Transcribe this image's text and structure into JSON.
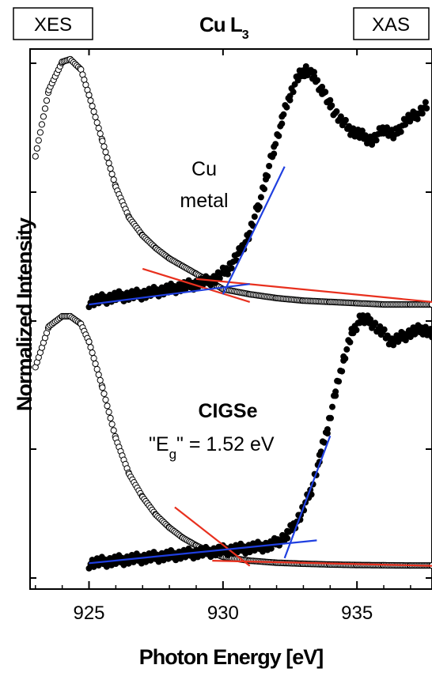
{
  "chart_data": {
    "type": "scatter",
    "title": "Cu L",
    "title_sub": "3",
    "xlabel": "Photon Energy [eV]",
    "ylabel": "Normalized Intensity",
    "xlim": [
      922.8,
      937.8
    ],
    "x_ticks": [
      925,
      930,
      935
    ],
    "x_tick_labels": [
      "925",
      "930",
      "935"
    ],
    "y_axis": "arbitrary units, no tick labels",
    "legend_boxes": {
      "left": "XES",
      "right": "XAS"
    },
    "panels": [
      {
        "annotation_lines": [
          "Cu",
          "metal"
        ],
        "series": [
          {
            "name": "XES",
            "marker": "open-circle",
            "x": [
              923.0,
              923.5,
              924.0,
              924.3,
              924.7,
              925.0,
              925.5,
              926.0,
              926.5,
              927.0,
              927.5,
              928.0,
              928.5,
              929.0,
              929.5,
              930.0,
              931.0,
              932.0,
              933.0,
              934.0,
              935.0,
              936.0,
              937.0,
              937.8
            ],
            "y": [
              0.62,
              0.88,
              0.99,
              1.0,
              0.96,
              0.86,
              0.68,
              0.5,
              0.38,
              0.31,
              0.26,
              0.22,
              0.19,
              0.16,
              0.13,
              0.1,
              0.08,
              0.065,
              0.055,
              0.05,
              0.045,
              0.04,
              0.04,
              0.04
            ]
          },
          {
            "name": "XAS",
            "marker": "filled-circle",
            "x": [
              925.0,
              926.0,
              927.0,
              928.0,
              929.0,
              929.7,
              930.2,
              930.6,
              931.0,
              931.3,
              931.6,
              931.9,
              932.2,
              932.5,
              932.8,
              933.1,
              933.4,
              933.7,
              934.0,
              934.4,
              934.8,
              935.2,
              935.6,
              936.0,
              936.4,
              936.8,
              937.2,
              937.6
            ],
            "y": [
              0.05,
              0.07,
              0.08,
              0.1,
              0.12,
              0.14,
              0.18,
              0.24,
              0.32,
              0.42,
              0.53,
              0.65,
              0.76,
              0.86,
              0.93,
              0.96,
              0.93,
              0.88,
              0.82,
              0.76,
              0.72,
              0.7,
              0.68,
              0.73,
              0.7,
              0.76,
              0.78,
              0.82
            ]
          }
        ],
        "fit_lines": [
          {
            "color": "#e8301e",
            "x": [
              927.0,
              931.0
            ],
            "y": [
              0.18,
              0.05
            ]
          },
          {
            "color": "#e8301e",
            "x": [
              929.0,
              937.8
            ],
            "y": [
              0.14,
              0.05
            ]
          },
          {
            "color": "#1f3fe0",
            "x": [
              925.0,
              931.0
            ],
            "y": [
              0.04,
              0.12
            ]
          },
          {
            "color": "#1f3fe0",
            "x": [
              930.0,
              932.3
            ],
            "y": [
              0.08,
              0.58
            ]
          }
        ]
      },
      {
        "annotation_title": "CIGSe",
        "annotation_eg_prefix": "\"E",
        "annotation_eg_sub": "g",
        "annotation_eg_suffix": "\" = 1.52 eV",
        "series": [
          {
            "name": "XES",
            "marker": "open-circle",
            "x": [
              923.0,
              923.5,
              924.0,
              924.3,
              924.7,
              925.0,
              925.5,
              926.0,
              926.5,
              927.0,
              927.5,
              928.0,
              928.5,
              929.0,
              929.5,
              930.0,
              931.0,
              932.0,
              933.0,
              934.0,
              935.0,
              936.0,
              937.0,
              937.8
            ],
            "y": [
              0.8,
              0.96,
              1.0,
              1.0,
              0.97,
              0.9,
              0.72,
              0.52,
              0.38,
              0.29,
              0.22,
              0.17,
              0.13,
              0.1,
              0.075,
              0.055,
              0.04,
              0.032,
              0.028,
              0.025,
              0.023,
              0.022,
              0.021,
              0.021
            ]
          },
          {
            "name": "XAS",
            "marker": "filled-circle",
            "x": [
              925.0,
              926.0,
              927.0,
              928.0,
              929.0,
              930.0,
              931.0,
              931.8,
              932.4,
              932.9,
              933.3,
              933.6,
              933.9,
              934.2,
              934.5,
              934.8,
              935.1,
              935.5,
              935.9,
              936.3,
              936.7,
              937.1,
              937.5,
              937.8
            ],
            "y": [
              0.03,
              0.04,
              0.05,
              0.06,
              0.07,
              0.08,
              0.09,
              0.1,
              0.14,
              0.22,
              0.32,
              0.44,
              0.56,
              0.7,
              0.83,
              0.93,
              0.99,
              0.98,
              0.94,
              0.9,
              0.92,
              0.94,
              0.95,
              0.93
            ]
          }
        ],
        "fit_lines": [
          {
            "color": "#e8301e",
            "x": [
              928.2,
              931.0
            ],
            "y": [
              0.25,
              0.02
            ]
          },
          {
            "color": "#e8301e",
            "x": [
              929.6,
              937.8
            ],
            "y": [
              0.04,
              0.02
            ]
          },
          {
            "color": "#1f3fe0",
            "x": [
              925.0,
              933.5
            ],
            "y": [
              0.03,
              0.12
            ]
          },
          {
            "color": "#1f3fe0",
            "x": [
              932.3,
              934.0
            ],
            "y": [
              0.05,
              0.53
            ]
          }
        ]
      }
    ]
  }
}
